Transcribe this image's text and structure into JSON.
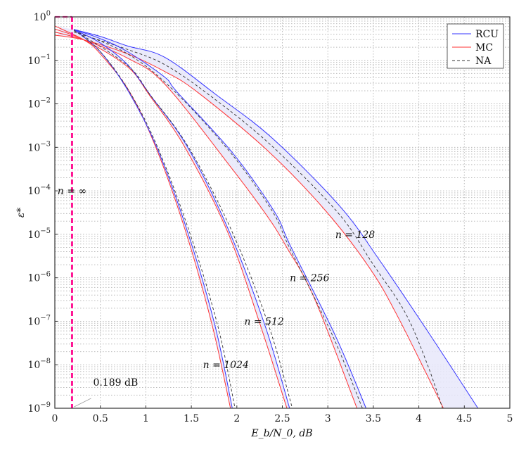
{
  "chart_data": {
    "type": "line",
    "title": "",
    "xlabel": "E_b/N_0, dB",
    "ylabel": "ε*",
    "xlim": [
      0,
      5
    ],
    "ylim": [
      1e-09,
      1
    ],
    "yscale": "log",
    "grid": true,
    "legend_position": "top-right",
    "x_ticks": [
      "0",
      "0.5",
      "1",
      "1.5",
      "2",
      "2.5",
      "3",
      "3.5",
      "4",
      "4.5",
      "5"
    ],
    "y_ticks": [
      "0",
      "−1",
      "−2",
      "−3",
      "−4",
      "−5",
      "−6",
      "−7",
      "−8",
      "−9"
    ],
    "y_tick_base": "10",
    "legend": [
      {
        "name": "RCU",
        "color": "#3333ff",
        "style": "solid"
      },
      {
        "name": "MC",
        "color": "#ff3333",
        "style": "solid"
      },
      {
        "name": "NA",
        "color": "#333333",
        "style": "dashed"
      }
    ],
    "band_fill_color": "#e8e8fa",
    "limit_line": {
      "x": 0.189,
      "label": "0.189 dB",
      "curve_label": "n = ∞",
      "color": "#ff1493"
    },
    "groups": [
      {
        "label": "n = 128",
        "RCU": [
          [
            0.21,
            0.513
          ],
          [
            0.5,
            0.355
          ],
          [
            0.8,
            0.214
          ],
          [
            1.21,
            0.117
          ],
          [
            1.78,
            0.0158
          ],
          [
            2.39,
            0.00162
          ],
          [
            3.13,
            4.47e-05
          ],
          [
            3.57,
            2.51e-06
          ],
          [
            4.11,
            5.37e-08
          ],
          [
            4.65,
            1e-09
          ]
        ],
        "MC": [
          [
            0,
            0.38
          ],
          [
            0.32,
            0.295
          ],
          [
            0.8,
            0.141
          ],
          [
            1.21,
            0.055
          ],
          [
            1.56,
            0.0191
          ],
          [
            2.33,
            0.000871
          ],
          [
            2.98,
            3.39e-05
          ],
          [
            3.47,
            1.55e-06
          ],
          [
            3.78,
            1.15e-07
          ],
          [
            4.27,
            1e-09
          ]
        ],
        "NA": [
          [
            0.21,
            0.447
          ],
          [
            0.8,
            0.178
          ],
          [
            1.21,
            0.0794
          ],
          [
            1.7,
            0.0158
          ],
          [
            2.36,
            0.0012
          ],
          [
            3.11,
            3.16e-05
          ],
          [
            3.5,
            2e-06
          ],
          [
            3.85,
            1.58e-07
          ],
          [
            4.09,
            1.07e-08
          ],
          [
            4.26,
            1e-09
          ]
        ]
      },
      {
        "label": "n = 256",
        "RCU": [
          [
            0.21,
            0.513
          ],
          [
            0.5,
            0.316
          ],
          [
            0.8,
            0.158
          ],
          [
            1.21,
            0.0407
          ],
          [
            1.34,
            0.0191
          ],
          [
            1.95,
            0.000759
          ],
          [
            2.41,
            3.39e-05
          ],
          [
            2.59,
            5.37e-06
          ],
          [
            3.08,
            4.79e-08
          ],
          [
            3.42,
            1e-09
          ]
        ],
        "MC": [
          [
            0,
            0.447
          ],
          [
            0.32,
            0.295
          ],
          [
            0.8,
            0.112
          ],
          [
            1.21,
            0.0282
          ],
          [
            1.95,
            0.000316
          ],
          [
            2.33,
            2.69e-05
          ],
          [
            2.54,
            5.37e-06
          ],
          [
            2.85,
            3.47e-07
          ],
          [
            3.32,
            1e-09
          ]
        ],
        "NA": [
          [
            0.21,
            0.479
          ],
          [
            0.8,
            0.141
          ],
          [
            1.3,
            0.0209
          ],
          [
            1.93,
            0.000759
          ],
          [
            2.39,
            3.39e-05
          ],
          [
            2.57,
            5.37e-06
          ],
          [
            3.05,
            4.79e-08
          ],
          [
            3.38,
            1e-09
          ]
        ]
      },
      {
        "label": "n = 512",
        "RCU": [
          [
            0.21,
            0.513
          ],
          [
            0.5,
            0.251
          ],
          [
            0.8,
            0.0794
          ],
          [
            1.05,
            0.0158
          ],
          [
            1.46,
            0.001
          ],
          [
            1.92,
            1.12e-05
          ],
          [
            2.31,
            7.94e-08
          ],
          [
            2.58,
            1e-09
          ]
        ],
        "MC": [
          [
            0,
            0.525
          ],
          [
            0.32,
            0.295
          ],
          [
            0.8,
            0.0708
          ],
          [
            1.04,
            0.0158
          ],
          [
            1.43,
            0.001
          ],
          [
            1.9,
            1.12e-05
          ],
          [
            2.26,
            7.94e-08
          ],
          [
            2.55,
            1e-09
          ]
        ],
        "NA": [
          [
            0.21,
            0.501
          ],
          [
            0.8,
            0.0759
          ],
          [
            1.05,
            0.0158
          ],
          [
            1.47,
            0.001
          ],
          [
            1.95,
            1.12e-05
          ],
          [
            2.35,
            7.94e-08
          ],
          [
            2.61,
            1e-09
          ]
        ]
      },
      {
        "label": "n = 1024",
        "RCU": [
          [
            0.21,
            0.513
          ],
          [
            0.5,
            0.158
          ],
          [
            0.81,
            0.0191
          ],
          [
            1.12,
            0.001
          ],
          [
            1.46,
            1.12e-05
          ],
          [
            1.76,
            7.94e-08
          ],
          [
            1.95,
            1e-09
          ]
        ],
        "MC": [
          [
            0,
            0.617
          ],
          [
            0.32,
            0.295
          ],
          [
            0.5,
            0.141
          ],
          [
            0.82,
            0.0191
          ],
          [
            1.11,
            0.001
          ],
          [
            1.44,
            1.12e-05
          ],
          [
            1.73,
            7.94e-08
          ],
          [
            1.93,
            1e-09
          ]
        ],
        "NA": [
          [
            0.21,
            0.501
          ],
          [
            0.5,
            0.158
          ],
          [
            0.82,
            0.0191
          ],
          [
            1.13,
            0.001
          ],
          [
            1.48,
            1.12e-05
          ],
          [
            1.79,
            7.94e-08
          ],
          [
            1.98,
            1e-09
          ]
        ]
      }
    ]
  }
}
